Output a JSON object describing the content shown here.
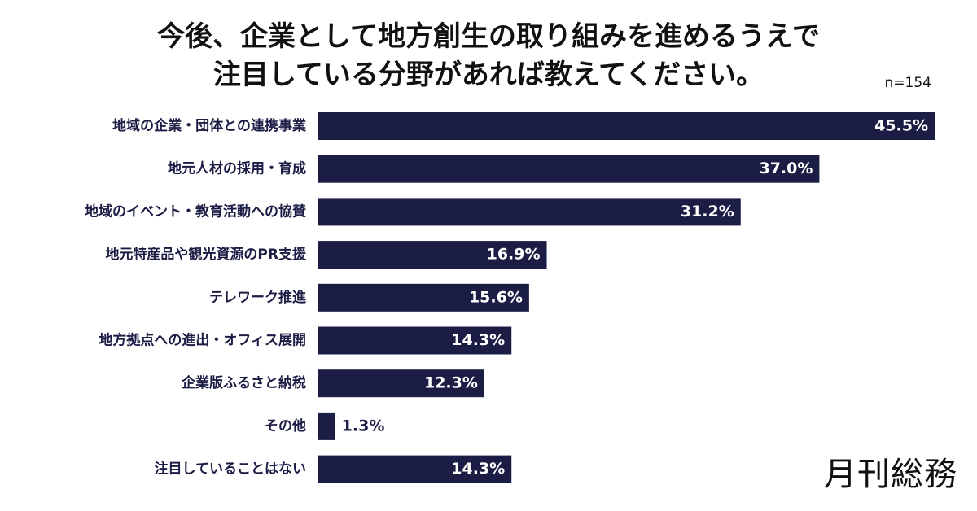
{
  "title_lines": [
    "今後、企業として地方創生の取り組みを進めるうえで",
    "注目している分野があれば教えてください。"
  ],
  "sample_size": "n=154",
  "brand": "月刊総務",
  "colors": {
    "bar": "#1c1d45",
    "label_in_bar": "#ffffff"
  },
  "chart_data": {
    "type": "bar",
    "orientation": "horizontal",
    "categories": [
      "地域の企業・団体との連携事業",
      "地元人材の採用・育成",
      "地域のイベント・教育活動への協賛",
      "地元特産品や観光資源のPR支援",
      "テレワーク推進",
      "地方拠点への進出・オフィス展開",
      "企業版ふるさと納税",
      "その他",
      "注目していることはない"
    ],
    "values": [
      45.5,
      37.0,
      31.2,
      16.9,
      15.6,
      14.3,
      12.3,
      1.3,
      14.3
    ],
    "value_labels": [
      "45.5%",
      "37.0%",
      "31.2%",
      "16.9%",
      "15.6%",
      "14.3%",
      "12.3%",
      "1.3%",
      "14.3%"
    ],
    "unit": "%",
    "xlim": [
      0,
      45.5
    ],
    "grid": false,
    "legend": "none"
  }
}
